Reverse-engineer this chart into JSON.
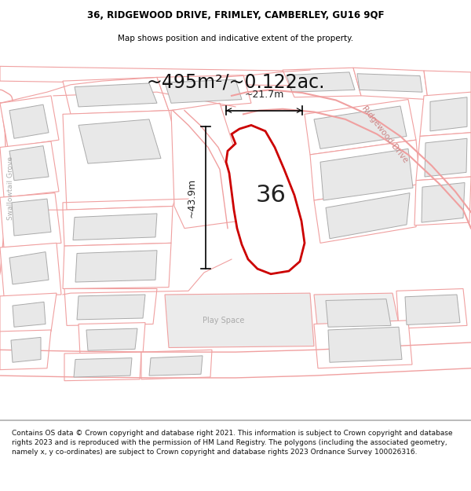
{
  "title_line1": "36, RIDGEWOOD DRIVE, FRIMLEY, CAMBERLEY, GU16 9QF",
  "title_line2": "Map shows position and indicative extent of the property.",
  "area_label": "~495m²/~0.122ac.",
  "number_label": "36",
  "dim_v": "~43.9m",
  "dim_h": "~21.7m",
  "street_label1": "Ridgewood Drive",
  "street_label2": "Swallowtail Grove",
  "place_label": "Play Space",
  "footer": "Contains OS data © Crown copyright and database right 2021. This information is subject to Crown copyright and database rights 2023 and is reproduced with the permission of HM Land Registry. The polygons (including the associated geometry, namely x, y co-ordinates) are subject to Crown copyright and database rights 2023 Ordnance Survey 100026316.",
  "map_bg": "#ffffff",
  "plot_fill": "#ffffff",
  "plot_stroke": "#cc0000",
  "parcel_stroke": "#f0a0a0",
  "building_fill": "#e8e8e8",
  "building_stroke": "#aaaaaa",
  "fig_width": 6.0,
  "fig_height": 6.25,
  "title_fontsize": 8.5,
  "subtitle_fontsize": 7.5,
  "area_fontsize": 17,
  "number_fontsize": 22,
  "dim_fontsize": 9
}
